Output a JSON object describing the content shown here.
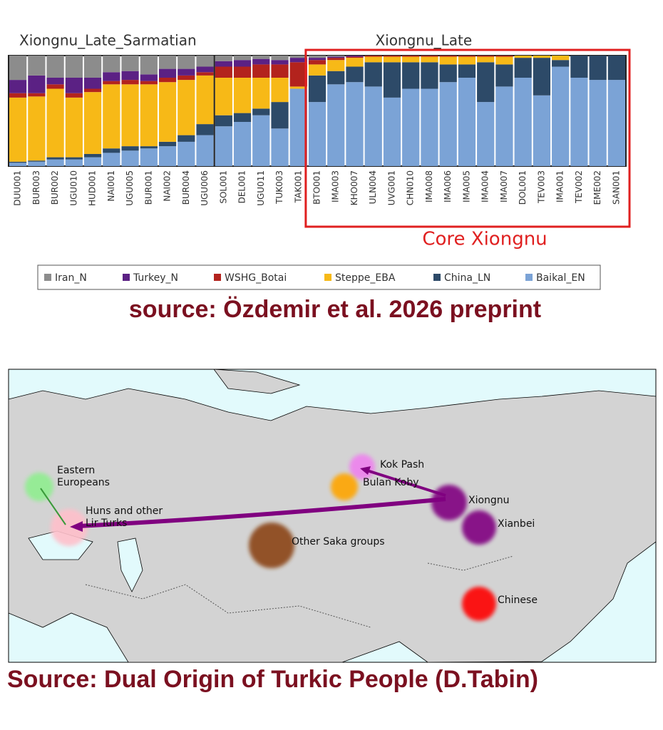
{
  "chart_data": {
    "type": "stacked_bar",
    "groups": [
      "Xiongnu_Late_Sarmatian",
      "Xiongnu_Late"
    ],
    "annotation": "Core Xiongnu",
    "categories": [
      "DUU001",
      "BUR003",
      "BUR002",
      "UGU010",
      "HUD001",
      "NAI001",
      "UGU005",
      "BUR001",
      "NAI002",
      "BUR004",
      "UGU006",
      "SOL001",
      "DEL001",
      "UGU011",
      "TUK003",
      "TAK001",
      "BTO001",
      "IMA003",
      "KHO007",
      "ULN004",
      "UVG001",
      "CHN010",
      "IMA008",
      "IMA006",
      "IMA005",
      "IMA004",
      "IMA007",
      "DOL001",
      "TEV003",
      "IMA001",
      "TEV002",
      "EME002",
      "SAN001"
    ],
    "series": [
      {
        "name": "Baikal_EN",
        "color": "#7ba3d6",
        "values": [
          3,
          4,
          6,
          6,
          8,
          12,
          14,
          16,
          18,
          22,
          28,
          36,
          40,
          46,
          34,
          70,
          58,
          74,
          76,
          72,
          62,
          70,
          70,
          76,
          80,
          58,
          72,
          80,
          64,
          90,
          80,
          78,
          78
        ]
      },
      {
        "name": "China_LN",
        "color": "#2d4a68",
        "values": [
          1,
          1,
          2,
          2,
          3,
          4,
          4,
          2,
          4,
          6,
          10,
          10,
          8,
          6,
          24,
          0,
          24,
          12,
          14,
          22,
          32,
          24,
          24,
          16,
          12,
          36,
          20,
          18,
          34,
          6,
          20,
          22,
          22
        ]
      },
      {
        "name": "Steppe_EBA",
        "color": "#f7b917",
        "values": [
          58,
          58,
          62,
          54,
          56,
          58,
          56,
          56,
          54,
          50,
          44,
          34,
          32,
          28,
          22,
          2,
          10,
          10,
          8,
          5,
          5,
          5,
          5,
          7,
          7,
          5,
          7,
          2,
          2,
          4,
          0,
          0,
          0
        ]
      },
      {
        "name": "WSHG_Botai",
        "color": "#b3231d",
        "values": [
          4,
          3,
          4,
          4,
          3,
          3,
          4,
          3,
          4,
          4,
          3,
          10,
          10,
          12,
          12,
          22,
          4,
          2,
          1,
          1,
          1,
          1,
          1,
          1,
          1,
          1,
          1,
          0,
          0,
          0,
          0,
          0,
          0
        ]
      },
      {
        "name": "Turkey_N",
        "color": "#5b2184",
        "values": [
          12,
          16,
          6,
          14,
          10,
          8,
          8,
          6,
          8,
          6,
          5,
          5,
          6,
          5,
          4,
          4,
          2,
          1,
          1,
          0,
          0,
          0,
          0,
          0,
          0,
          0,
          0,
          0,
          0,
          0,
          0,
          0,
          0
        ]
      },
      {
        "name": "Iran_N",
        "color": "#8c8c8c",
        "values": [
          22,
          18,
          20,
          20,
          20,
          15,
          14,
          17,
          12,
          12,
          10,
          5,
          4,
          3,
          4,
          2,
          2,
          1,
          0,
          0,
          0,
          0,
          0,
          0,
          0,
          0,
          0,
          0,
          0,
          0,
          0,
          0,
          0
        ]
      }
    ],
    "ylim": [
      0,
      100
    ]
  },
  "source_1": "source: Özdemir et al. 2026 preprint",
  "map": {
    "labels": [
      {
        "lines": [
          "Eastern",
          "Europeans"
        ],
        "color": "#90ee90"
      },
      {
        "lines": [
          "Huns and other",
          "Lir Turks"
        ],
        "color": "#ffc0cb"
      },
      {
        "lines": [
          "Kok Pash"
        ],
        "color": "#ee82ee"
      },
      {
        "lines": [
          "Bulan Koby"
        ],
        "color": "#ffa500"
      },
      {
        "lines": [
          "Xiongnu"
        ],
        "color": "#800080"
      },
      {
        "lines": [
          "Xianbei"
        ],
        "color": "#800080"
      },
      {
        "lines": [
          "Other Saka groups"
        ],
        "color": "#8b4513"
      },
      {
        "lines": [
          "Chinese"
        ],
        "color": "#ff0000"
      }
    ]
  },
  "source_2": "Source: Dual Origin of Turkic People (D.Tabin)"
}
